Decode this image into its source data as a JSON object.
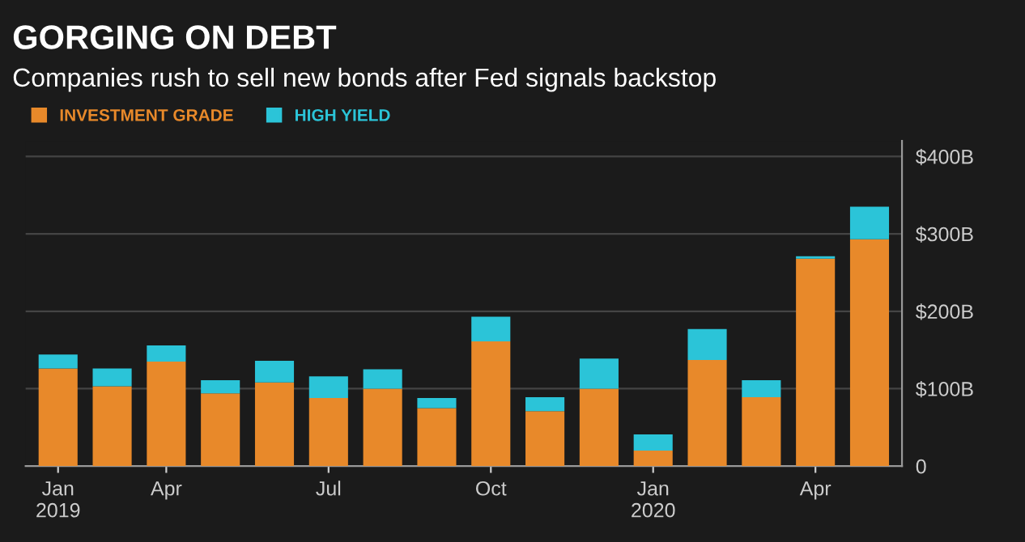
{
  "chart_data": {
    "type": "bar",
    "title": "GORGING ON DEBT",
    "subtitle": "Companies rush to sell new bonds after Fed signals backstop",
    "categories": [
      "Jan\n2019",
      null,
      "Apr",
      null,
      null,
      "Jul",
      null,
      null,
      "Oct",
      null,
      null,
      "Jan\n2020",
      null,
      null,
      "Apr",
      null
    ],
    "stacked": true,
    "series": [
      {
        "name": "INVESTMENT GRADE",
        "color": "#e8892a",
        "values": [
          126,
          103,
          135,
          94,
          108,
          88,
          100,
          75,
          161,
          71,
          100,
          20,
          137,
          89,
          268,
          293
        ]
      },
      {
        "name": "HIGH YIELD",
        "color": "#2bc4d8",
        "values": [
          18,
          23,
          21,
          17,
          28,
          28,
          25,
          13,
          32,
          18,
          39,
          21,
          40,
          22,
          3,
          42
        ]
      }
    ],
    "ylim": [
      0,
      420
    ],
    "yticks": [
      0,
      {
        "value": 100,
        "label": "$100B"
      },
      {
        "value": 200,
        "label": "$200B"
      },
      {
        "value": 300,
        "label": "$300B"
      },
      {
        "value": 400,
        "label": "$400B"
      }
    ],
    "grid": "y",
    "legend": "top left"
  }
}
